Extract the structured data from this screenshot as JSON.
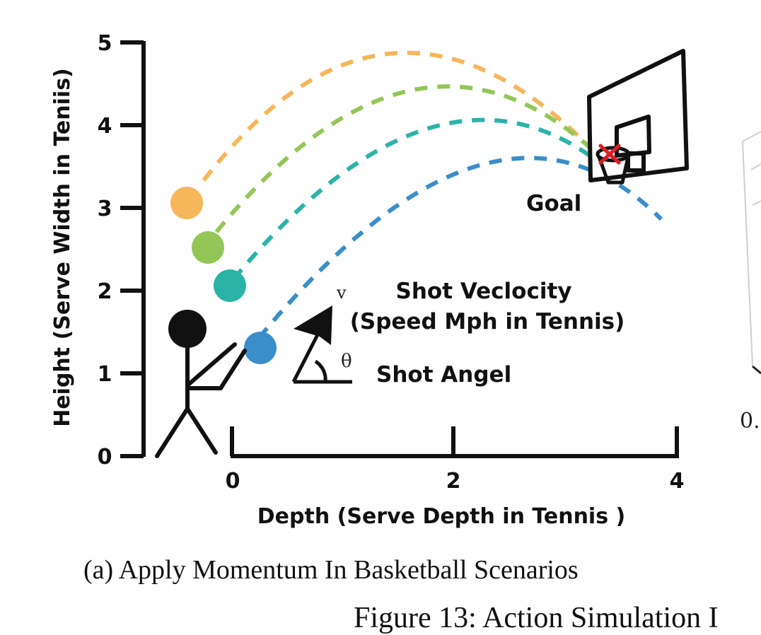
{
  "chart_data": {
    "type": "diagram",
    "ylabel": "Height (Serve Width in Teniis)",
    "xlabel": "Depth (Serve Depth in Tennis )",
    "y_ticks": [
      "0",
      "1",
      "2",
      "3",
      "4",
      "5"
    ],
    "x_ticks": [
      "0",
      "2",
      "4"
    ],
    "trajectories": [
      {
        "color": "#f5b75a",
        "start": [
          -0.4,
          3.05
        ]
      },
      {
        "color": "#93c656",
        "start": [
          -0.2,
          2.52
        ]
      },
      {
        "color": "#2bb3a8",
        "start": [
          0.0,
          2.05
        ]
      },
      {
        "color": "#3a8ec9",
        "start": [
          0.25,
          1.3
        ]
      }
    ]
  },
  "annotations": {
    "goal": "Goal",
    "velocity": "Shot Veclocity",
    "velocity_sub": "(Speed Mph in Tennis)",
    "angle": "Shot Angel",
    "v_symbol": "v",
    "theta_symbol": "θ"
  },
  "right_panel": {
    "tick_partial": "0."
  },
  "caption": "(a) Apply Momentum In Basketball Scenarios",
  "figure_caption": "Figure 13: Action Simulation I"
}
